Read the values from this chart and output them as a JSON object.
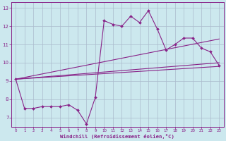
{
  "title": "",
  "xlabel": "Windchill (Refroidissement éolien,°C)",
  "background_color": "#cce8ee",
  "grid_color": "#aabbcc",
  "line_color": "#882288",
  "xlim": [
    -0.5,
    23.5
  ],
  "ylim": [
    6.5,
    13.3
  ],
  "yticks": [
    7,
    8,
    9,
    10,
    11,
    12,
    13
  ],
  "xticks": [
    0,
    1,
    2,
    3,
    4,
    5,
    6,
    7,
    8,
    9,
    10,
    11,
    12,
    13,
    14,
    15,
    16,
    17,
    18,
    19,
    20,
    21,
    22,
    23
  ],
  "series1_x": [
    0,
    1,
    2,
    3,
    4,
    5,
    6,
    7,
    8,
    9,
    10,
    11,
    12,
    13,
    14,
    15,
    16,
    17,
    18,
    19,
    20,
    21,
    22,
    23
  ],
  "series1_y": [
    9.1,
    7.5,
    7.5,
    7.6,
    7.6,
    7.6,
    7.7,
    7.4,
    6.65,
    8.1,
    12.3,
    12.1,
    12.0,
    12.55,
    12.2,
    12.85,
    11.85,
    10.7,
    11.0,
    11.35,
    11.35,
    10.8,
    10.6,
    9.85
  ],
  "series2_x": [
    0,
    23
  ],
  "series2_y": [
    9.1,
    11.3
  ],
  "series3_x": [
    0,
    23
  ],
  "series3_y": [
    9.1,
    10.0
  ],
  "series4_x": [
    0,
    23
  ],
  "series4_y": [
    9.1,
    9.8
  ]
}
